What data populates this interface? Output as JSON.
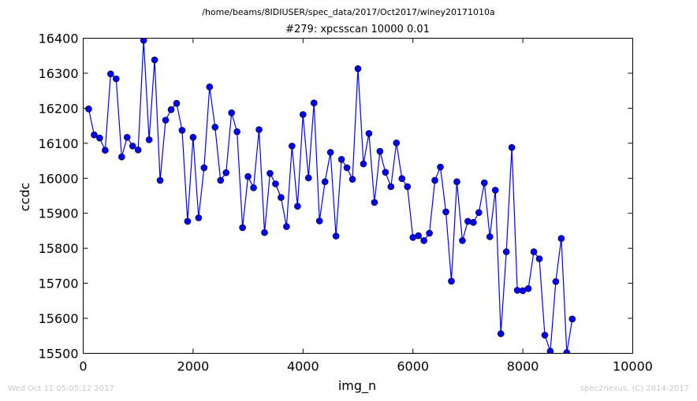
{
  "suptitle": "/home/beams/8IDIUSER/spec_data/2017/Oct2017/winey20171010a",
  "footer": {
    "timestamp": "Wed Oct 11 05:05:12 2017",
    "credit": "spec2nexus, (C) 2014-2017"
  },
  "colors": {
    "series": "#0000ff",
    "footer_text": "#c8c8c8"
  },
  "chart_data": {
    "type": "line",
    "title": "#279: xpcsscan 10000 0.01",
    "xlabel": "img_n",
    "ylabel": "ccdc",
    "xlim": [
      0,
      10000
    ],
    "ylim": [
      15500,
      16400
    ],
    "xticks": [
      0,
      2000,
      4000,
      6000,
      8000,
      10000
    ],
    "yticks": [
      15500,
      15600,
      15700,
      15800,
      15900,
      16000,
      16100,
      16200,
      16300,
      16400
    ],
    "grid": false,
    "marker": "circle",
    "series": [
      {
        "values": [
          {
            "x": 100,
            "y": 16198
          },
          {
            "x": 200,
            "y": 16124
          },
          {
            "x": 300,
            "y": 16115
          },
          {
            "x": 400,
            "y": 16080
          },
          {
            "x": 500,
            "y": 16298
          },
          {
            "x": 600,
            "y": 16284
          },
          {
            "x": 700,
            "y": 16061
          },
          {
            "x": 800,
            "y": 16117
          },
          {
            "x": 900,
            "y": 16092
          },
          {
            "x": 1000,
            "y": 16081
          },
          {
            "x": 1100,
            "y": 16394
          },
          {
            "x": 1200,
            "y": 16110
          },
          {
            "x": 1300,
            "y": 16338
          },
          {
            "x": 1400,
            "y": 15994
          },
          {
            "x": 1500,
            "y": 16166
          },
          {
            "x": 1600,
            "y": 16196
          },
          {
            "x": 1700,
            "y": 16214
          },
          {
            "x": 1800,
            "y": 16137
          },
          {
            "x": 1900,
            "y": 15877
          },
          {
            "x": 2000,
            "y": 16117
          },
          {
            "x": 2100,
            "y": 15887
          },
          {
            "x": 2200,
            "y": 16030
          },
          {
            "x": 2300,
            "y": 16261
          },
          {
            "x": 2400,
            "y": 16146
          },
          {
            "x": 2500,
            "y": 15994
          },
          {
            "x": 2600,
            "y": 16016
          },
          {
            "x": 2700,
            "y": 16187
          },
          {
            "x": 2800,
            "y": 16133
          },
          {
            "x": 2900,
            "y": 15859
          },
          {
            "x": 3000,
            "y": 16005
          },
          {
            "x": 3100,
            "y": 15973
          },
          {
            "x": 3200,
            "y": 16139
          },
          {
            "x": 3300,
            "y": 15845
          },
          {
            "x": 3400,
            "y": 16014
          },
          {
            "x": 3500,
            "y": 15984
          },
          {
            "x": 3600,
            "y": 15945
          },
          {
            "x": 3700,
            "y": 15862
          },
          {
            "x": 3800,
            "y": 16092
          },
          {
            "x": 3900,
            "y": 15920
          },
          {
            "x": 4000,
            "y": 16182
          },
          {
            "x": 4100,
            "y": 16001
          },
          {
            "x": 4200,
            "y": 16215
          },
          {
            "x": 4300,
            "y": 15878
          },
          {
            "x": 4400,
            "y": 15990
          },
          {
            "x": 4500,
            "y": 16074
          },
          {
            "x": 4600,
            "y": 15835
          },
          {
            "x": 4700,
            "y": 16054
          },
          {
            "x": 4800,
            "y": 16030
          },
          {
            "x": 4900,
            "y": 15997
          },
          {
            "x": 5000,
            "y": 16313
          },
          {
            "x": 5100,
            "y": 16041
          },
          {
            "x": 5200,
            "y": 16128
          },
          {
            "x": 5300,
            "y": 15931
          },
          {
            "x": 5400,
            "y": 16077
          },
          {
            "x": 5500,
            "y": 16017
          },
          {
            "x": 5600,
            "y": 15976
          },
          {
            "x": 5700,
            "y": 16101
          },
          {
            "x": 5800,
            "y": 15999
          },
          {
            "x": 5900,
            "y": 15976
          },
          {
            "x": 6000,
            "y": 15831
          },
          {
            "x": 6100,
            "y": 15836
          },
          {
            "x": 6200,
            "y": 15822
          },
          {
            "x": 6300,
            "y": 15843
          },
          {
            "x": 6400,
            "y": 15994
          },
          {
            "x": 6500,
            "y": 16032
          },
          {
            "x": 6600,
            "y": 15904
          },
          {
            "x": 6700,
            "y": 15706
          },
          {
            "x": 6800,
            "y": 15990
          },
          {
            "x": 6900,
            "y": 15822
          },
          {
            "x": 7000,
            "y": 15877
          },
          {
            "x": 7100,
            "y": 15874
          },
          {
            "x": 7200,
            "y": 15902
          },
          {
            "x": 7300,
            "y": 15987
          },
          {
            "x": 7400,
            "y": 15833
          },
          {
            "x": 7500,
            "y": 15966
          },
          {
            "x": 7600,
            "y": 15556
          },
          {
            "x": 7700,
            "y": 15790
          },
          {
            "x": 7800,
            "y": 16088
          },
          {
            "x": 7900,
            "y": 15680
          },
          {
            "x": 8000,
            "y": 15679
          },
          {
            "x": 8100,
            "y": 15685
          },
          {
            "x": 8200,
            "y": 15790
          },
          {
            "x": 8300,
            "y": 15770
          },
          {
            "x": 8400,
            "y": 15552
          },
          {
            "x": 8500,
            "y": 15506
          },
          {
            "x": 8600,
            "y": 15705
          },
          {
            "x": 8700,
            "y": 15828
          },
          {
            "x": 8800,
            "y": 15502
          },
          {
            "x": 8900,
            "y": 15598
          }
        ]
      }
    ]
  }
}
